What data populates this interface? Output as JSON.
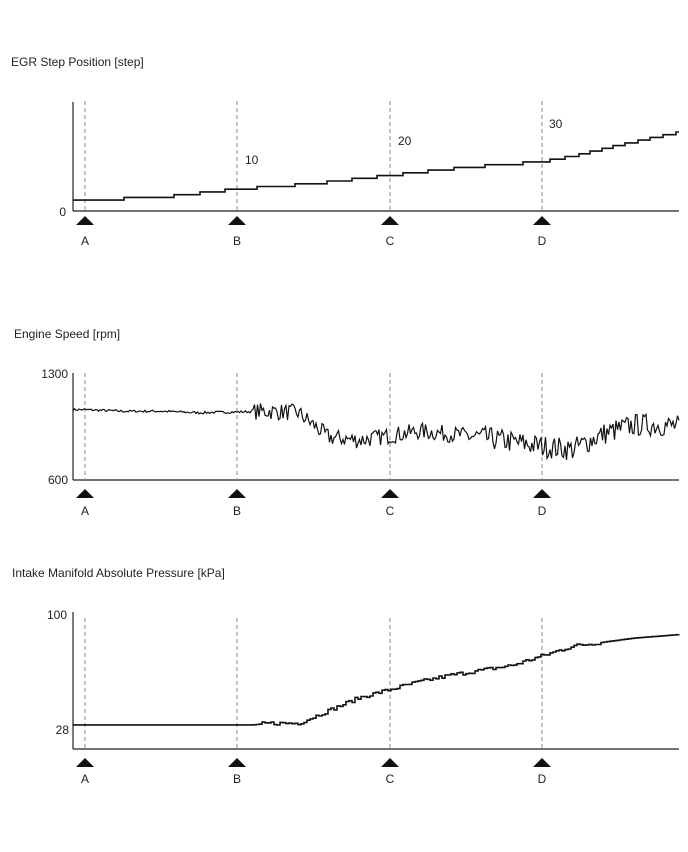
{
  "chart_data": [
    {
      "type": "line",
      "title": "EGR Step Position [step]",
      "xlabel": "",
      "ylabel": "",
      "y_tick_labels": [
        "0"
      ],
      "ylim": [
        0,
        40
      ],
      "markers": [
        "A",
        "B",
        "C",
        "D"
      ],
      "annotations": [
        {
          "marker": "B",
          "text": "10"
        },
        {
          "marker": "C",
          "text": "20"
        },
        {
          "marker": "D",
          "text": "30"
        }
      ],
      "series": [
        {
          "x": [
            0,
            0.5,
            1,
            1.5,
            2,
            2.5,
            3,
            3.2,
            3.5,
            4,
            5
          ],
          "values": [
            4,
            5,
            8,
            10,
            13,
            16,
            18,
            20,
            24,
            30,
            30
          ]
        }
      ],
      "grid": false
    },
    {
      "type": "line",
      "title": "Engine Speed [rpm]",
      "xlabel": "",
      "ylabel": "",
      "y_tick_labels": [
        "1300",
        "600"
      ],
      "ylim": [
        600,
        1300
      ],
      "markers": [
        "A",
        "B",
        "C",
        "D"
      ],
      "series": [
        {
          "x": [
            0,
            0.25,
            0.5,
            0.75,
            1,
            1.2,
            1.4,
            1.5,
            1.6,
            1.8,
            2,
            2.2,
            2.4,
            2.6,
            2.8,
            3,
            3.2,
            3.4,
            3.6,
            3.8,
            4,
            4.2,
            4.4,
            4.6,
            4.8,
            5
          ],
          "values": [
            1060,
            1050,
            1050,
            1040,
            1045,
            1050,
            1040,
            960,
            880,
            860,
            890,
            920,
            900,
            880,
            850,
            820,
            800,
            900,
            960,
            960,
            940,
            930,
            960,
            920,
            960,
            930
          ]
        }
      ],
      "grid": false
    },
    {
      "type": "line",
      "title": "Intake Manifold Absolute Pressure [kPa]",
      "xlabel": "",
      "ylabel": "",
      "y_tick_labels": [
        "100",
        "28"
      ],
      "ylim": [
        16,
        100
      ],
      "markers": [
        "A",
        "B",
        "C",
        "D"
      ],
      "series": [
        {
          "x": [
            -0.08,
            0.5,
            1,
            1.1,
            1.2,
            1.4,
            1.6,
            1.8,
            2,
            2.2,
            2.4,
            2.6,
            2.8,
            3,
            3.2,
            3.6,
            4,
            4.2,
            4.4,
            4.6,
            4.8,
            5
          ],
          "values": [
            31,
            31,
            31,
            31,
            32,
            32,
            40,
            48,
            53,
            58,
            62,
            65,
            68,
            74,
            80,
            85,
            88,
            90,
            90,
            90,
            90,
            90
          ]
        }
      ],
      "grid": false
    }
  ]
}
